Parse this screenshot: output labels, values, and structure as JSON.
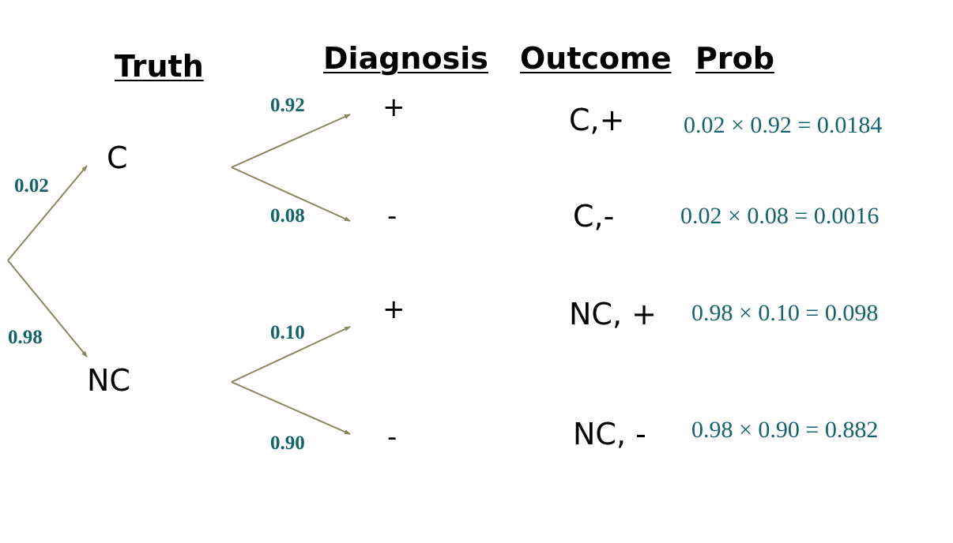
{
  "headers": {
    "truth": "Truth",
    "diagnosis": "Diagnosis",
    "outcome": "Outcome",
    "prob": "Prob"
  },
  "truth_nodes": {
    "c": "C",
    "nc": "NC"
  },
  "truth_probs": {
    "c": "0.02",
    "nc": "0.98"
  },
  "diagnosis_probs": {
    "c_pos": "0.92",
    "c_neg": "0.08",
    "nc_pos": "0.10",
    "nc_neg": "0.90"
  },
  "diagnosis_signs": {
    "c_pos": "+",
    "c_neg": "-",
    "nc_pos": "+",
    "nc_neg": "-"
  },
  "outcomes": {
    "c_pos": "C,+",
    "c_neg": "C,-",
    "nc_pos": "NC, +",
    "nc_neg": "NC, -"
  },
  "calculations": {
    "c_pos": "0.02 × 0.92 = 0.0184",
    "c_neg": "0.02 × 0.08 = 0.0016",
    "nc_pos": "0.98 × 0.10 = 0.098",
    "nc_neg": "0.98 × 0.90 = 0.882"
  },
  "colors": {
    "branch_line": "#8b8560",
    "probability_text": "#14636c"
  }
}
